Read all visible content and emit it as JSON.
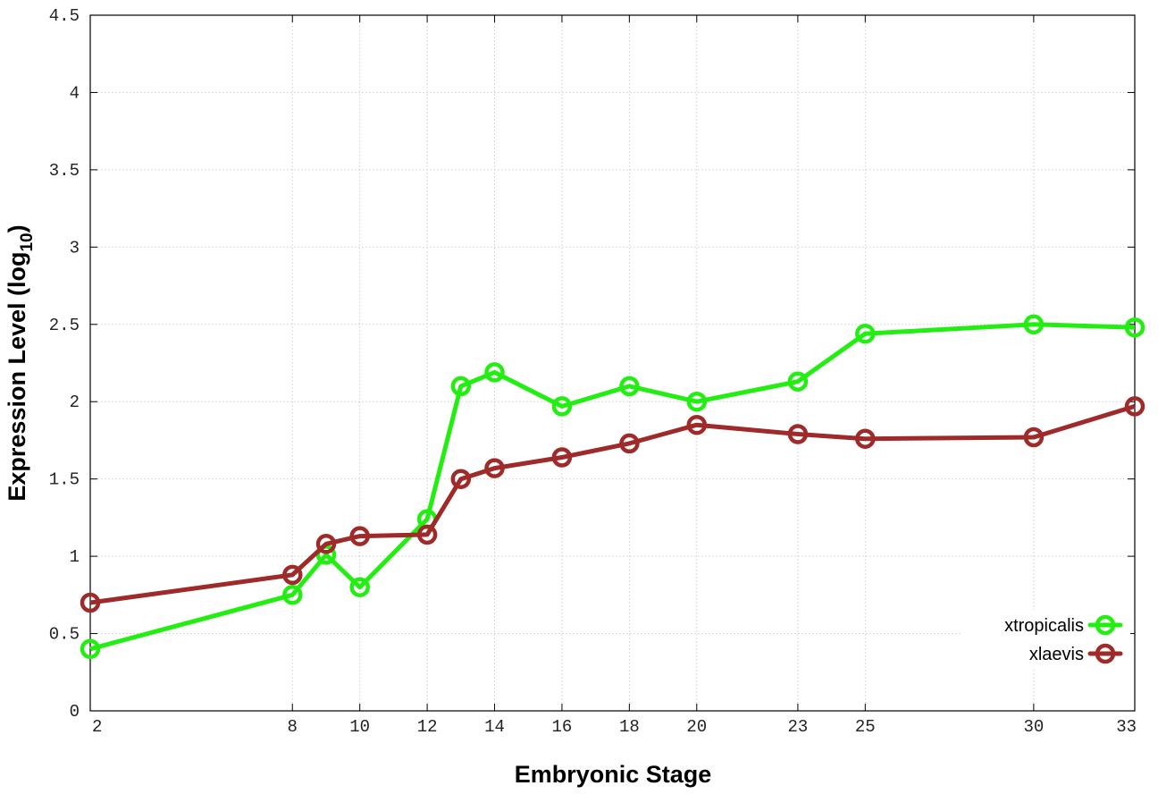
{
  "chart_data": {
    "type": "line",
    "xlabel": "Embryonic Stage",
    "ylabel": {
      "prefix": "Expression Level (log",
      "sub": "10",
      "suffix": ")"
    },
    "x_ticks": [
      2,
      8,
      10,
      12,
      14,
      16,
      18,
      20,
      23,
      25,
      30,
      33
    ],
    "y_ticks": [
      0,
      0.5,
      1,
      1.5,
      2,
      2.5,
      3,
      3.5,
      4,
      4.5
    ],
    "y_tick_labels": [
      "0",
      "0.5",
      "1",
      "1.5",
      "2",
      "2.5",
      "3",
      "3.5",
      "4",
      "4.5"
    ],
    "xlim": [
      2,
      33
    ],
    "ylim": [
      0,
      4.5
    ],
    "grid": true,
    "legend_position": "bottom-right",
    "series": [
      {
        "name": "xtropicalis",
        "color": "#22ee11",
        "points": [
          [
            2,
            0.4
          ],
          [
            8,
            0.75
          ],
          [
            9,
            1.01
          ],
          [
            10,
            0.8
          ],
          [
            12,
            1.24
          ],
          [
            13,
            2.1
          ],
          [
            14,
            2.19
          ],
          [
            16,
            1.97
          ],
          [
            18,
            2.1
          ],
          [
            20,
            2.0
          ],
          [
            23,
            2.13
          ],
          [
            25,
            2.44
          ],
          [
            30,
            2.5
          ],
          [
            33,
            2.48
          ]
        ]
      },
      {
        "name": "xlaevis",
        "color": "#9e2a2a",
        "points": [
          [
            2,
            0.7
          ],
          [
            8,
            0.88
          ],
          [
            9,
            1.08
          ],
          [
            10,
            1.13
          ],
          [
            12,
            1.14
          ],
          [
            13,
            1.5
          ],
          [
            14,
            1.57
          ],
          [
            16,
            1.64
          ],
          [
            18,
            1.73
          ],
          [
            20,
            1.85
          ],
          [
            23,
            1.79
          ],
          [
            25,
            1.76
          ],
          [
            30,
            1.77
          ],
          [
            33,
            1.97
          ]
        ]
      }
    ]
  }
}
